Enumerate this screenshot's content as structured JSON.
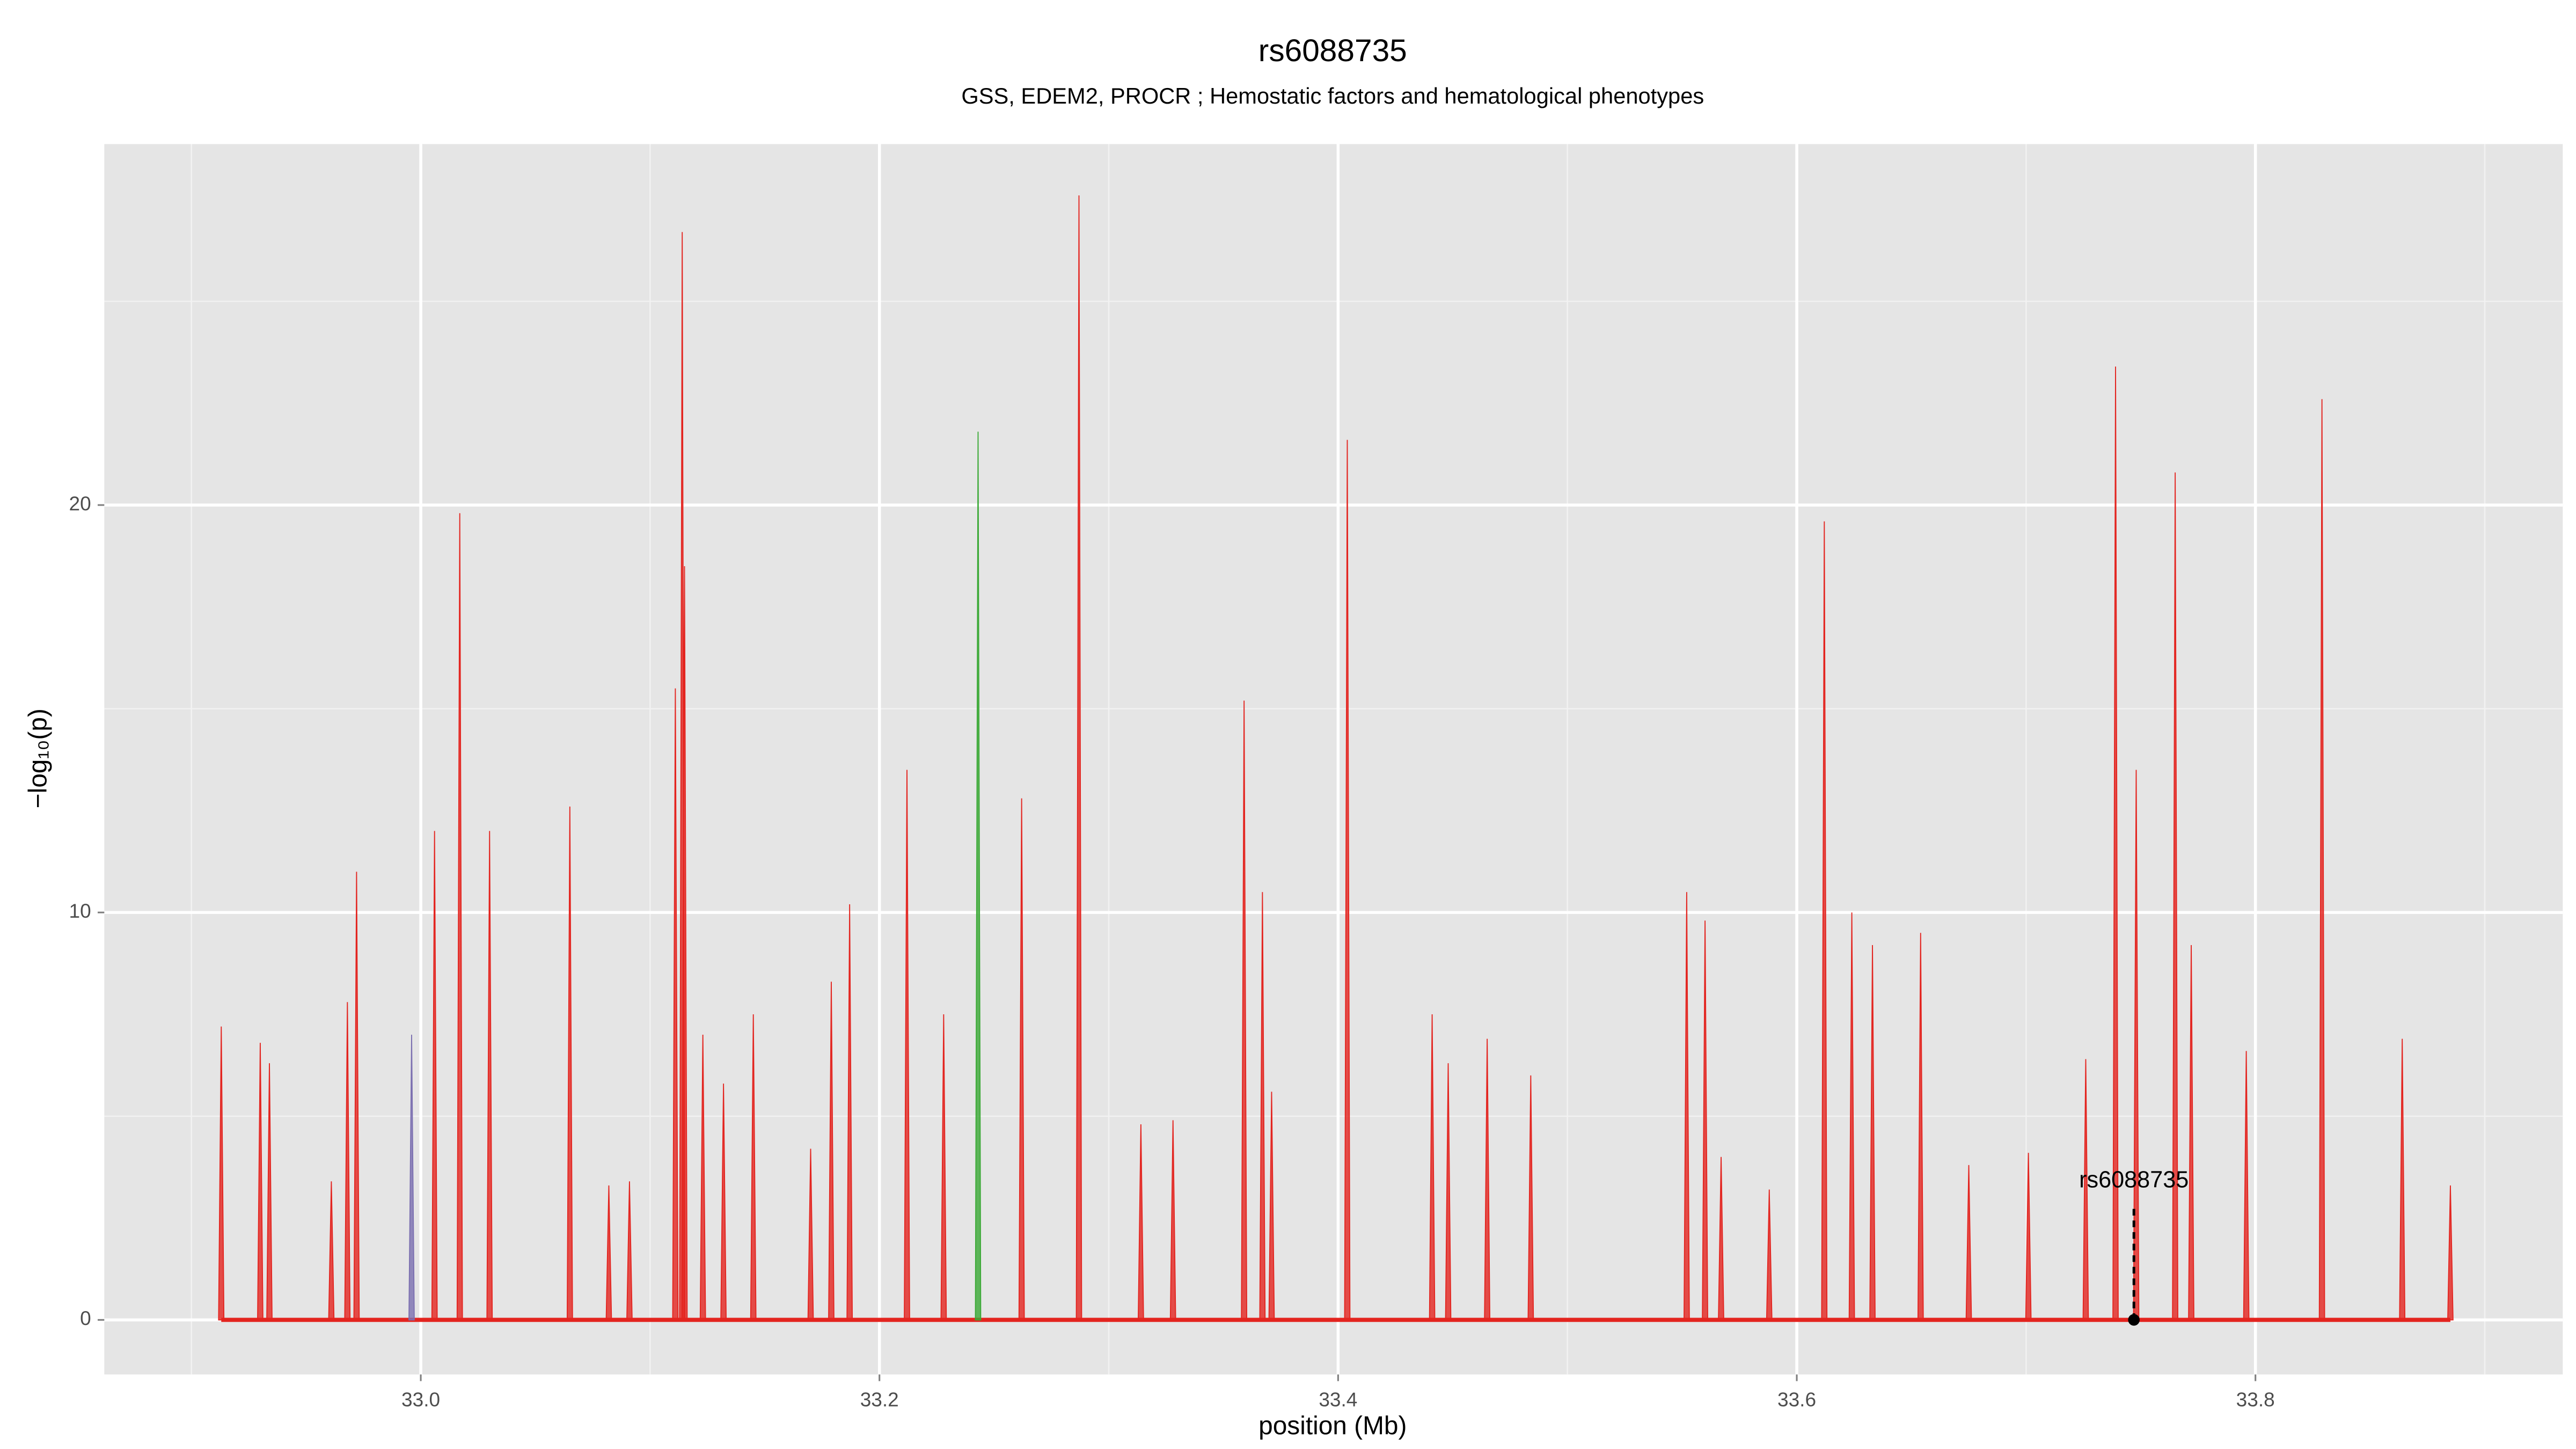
{
  "chart_data": {
    "type": "stem",
    "title": "rs6088735",
    "subtitle": "GSS, EDEM2, PROCR ; Hemostatic factors and hematological phenotypes",
    "xlabel": "position (Mb)",
    "ylabel": "−log₁₀(p)",
    "xlim": [
      32.862,
      33.934
    ],
    "ylim": [
      -1.34,
      28.86
    ],
    "xticks": [
      {
        "value": 33,
        "label": "33.0"
      },
      33.2,
      33.4,
      33.6,
      33.8
    ],
    "yticks": [
      0,
      10,
      20
    ],
    "grid": true,
    "series": [
      {
        "color": "#e3241f",
        "x": [
          32.913,
          32.93,
          32.934,
          32.961,
          32.968,
          32.972,
          33.006,
          33.017,
          33.03,
          33.065,
          33.082,
          33.091,
          33.111,
          33.114,
          33.115,
          33.123,
          33.132,
          33.145,
          33.17,
          33.179,
          33.187,
          33.212,
          33.228,
          33.262,
          33.287,
          33.314,
          33.328,
          33.359,
          33.367,
          33.371,
          33.404,
          33.441,
          33.448,
          33.465,
          33.484,
          33.552,
          33.56,
          33.567,
          33.588,
          33.612,
          33.624,
          33.633,
          33.654,
          33.675,
          33.701,
          33.726,
          33.739,
          33.748,
          33.765,
          33.772,
          33.796,
          33.829,
          33.864,
          33.885
        ],
        "values": [
          7.2,
          6.8,
          6.3,
          3.4,
          7.8,
          11,
          12,
          19.8,
          12,
          12.6,
          3.3,
          3.4,
          15.5,
          26.7,
          18.5,
          7,
          5.8,
          7.5,
          4.2,
          8.3,
          10.2,
          13.5,
          7.5,
          12.8,
          27.6,
          4.8,
          4.9,
          15.2,
          10.5,
          5.6,
          21.6,
          7.5,
          6.3,
          6.9,
          6,
          10.5,
          9.8,
          4,
          3.2,
          19.6,
          10,
          9.2,
          9.5,
          3.8,
          4.1,
          6.4,
          23.4,
          13.5,
          20.8,
          9.2,
          6.6,
          22.6,
          6.9,
          3.3
        ]
      },
      {
        "color": "#7b6fb0",
        "x": [
          32.996
        ],
        "values": [
          7
        ]
      },
      {
        "color": "#3aa935",
        "x": [
          33.243
        ],
        "values": [
          21.8
        ]
      }
    ],
    "annotation": {
      "label": "rs6088735",
      "x": 33.747,
      "y": 0
    }
  }
}
